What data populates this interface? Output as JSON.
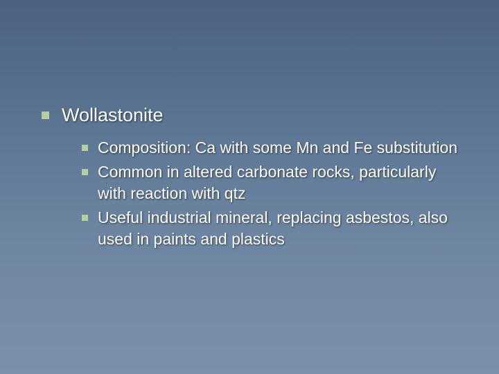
{
  "slide": {
    "background_gradient": [
      "#4a6280",
      "#5c7694",
      "#6b84a0",
      "#7a91ab"
    ],
    "text_color": "#ffffff",
    "bullet_color": "#b6cfa0",
    "font_family": "Verdana",
    "main": {
      "text": "Wollastonite",
      "fontsize": 27,
      "bullet_size": 11
    },
    "subs": [
      {
        "text": "Composition: Ca with some Mn and Fe substitution"
      },
      {
        "text": "Common in altered carbonate rocks, particularly with reaction with qtz"
      },
      {
        "text": "Useful industrial mineral, replacing asbestos, also used in paints and plastics"
      }
    ],
    "sub_fontsize": 23,
    "sub_bullet_size": 9
  }
}
